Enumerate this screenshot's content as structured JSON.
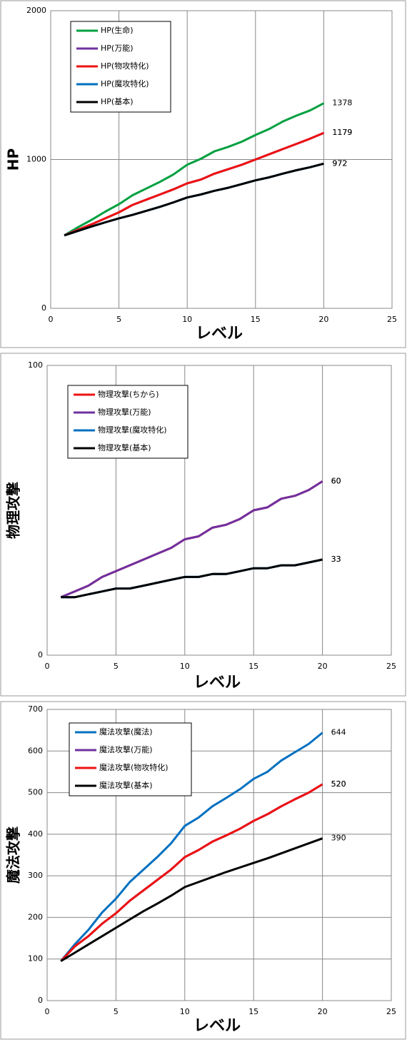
{
  "chart_data": [
    {
      "type": "line",
      "ylabel": "HP",
      "ylabel_color": "#00a040",
      "xlabel": "レベル",
      "x": [
        1,
        2,
        3,
        4,
        5,
        6,
        7,
        8,
        9,
        10,
        11,
        12,
        13,
        14,
        15,
        16,
        17,
        18,
        19,
        20
      ],
      "xlim": [
        0,
        25
      ],
      "xticks": [
        0,
        5,
        10,
        15,
        20,
        25
      ],
      "ylim": [
        0,
        2000
      ],
      "yticks": [
        0,
        1000,
        2000
      ],
      "grid": true,
      "series": [
        {
          "name": "HP(生命)",
          "color": "#00a040",
          "values": [
            490,
            545,
            595,
            650,
            700,
            760,
            805,
            850,
            900,
            965,
            1005,
            1055,
            1085,
            1120,
            1165,
            1205,
            1255,
            1295,
            1330,
            1378
          ]
        },
        {
          "name": "HP(万能)",
          "color": "#7030a0",
          "values": [
            490,
            528,
            565,
            605,
            645,
            695,
            730,
            765,
            800,
            840,
            865,
            905,
            935,
            965,
            1000,
            1035,
            1070,
            1105,
            1140,
            1179
          ]
        },
        {
          "name": "HP(物攻特化)",
          "color": "#ee1111",
          "values": [
            490,
            528,
            565,
            605,
            645,
            695,
            730,
            765,
            800,
            840,
            865,
            905,
            935,
            965,
            1000,
            1035,
            1070,
            1105,
            1140,
            1179
          ]
        },
        {
          "name": "HP(魔攻特化)",
          "color": "#0070c0",
          "values": [
            490,
            520,
            550,
            578,
            605,
            628,
            655,
            682,
            712,
            745,
            765,
            790,
            810,
            835,
            860,
            880,
            905,
            928,
            948,
            972
          ]
        },
        {
          "name": "HP(基本)",
          "color": "#000000",
          "values": [
            490,
            520,
            550,
            578,
            605,
            628,
            655,
            682,
            712,
            745,
            765,
            790,
            810,
            835,
            860,
            880,
            905,
            928,
            948,
            972
          ]
        }
      ]
    },
    {
      "type": "line",
      "ylabel": "物理攻撃",
      "ylabel_color": "#ee1111",
      "xlabel": "レベル",
      "x": [
        1,
        2,
        3,
        4,
        5,
        6,
        7,
        8,
        9,
        10,
        11,
        12,
        13,
        14,
        15,
        16,
        17,
        18,
        19,
        20
      ],
      "xlim": [
        0,
        25
      ],
      "xticks": [
        0,
        5,
        10,
        15,
        20,
        25
      ],
      "ylim": [
        0,
        100
      ],
      "yticks": [
        0,
        100
      ],
      "grid": true,
      "series": [
        {
          "name": "物理攻撃(ちから)",
          "color": "#ee1111",
          "values": [
            20,
            22,
            24,
            27,
            29,
            31,
            33,
            35,
            37,
            40,
            41,
            44,
            45,
            47,
            50,
            51,
            54,
            55,
            57,
            60
          ]
        },
        {
          "name": "物理攻撃(万能)",
          "color": "#7030a0",
          "values": [
            20,
            22,
            24,
            27,
            29,
            31,
            33,
            35,
            37,
            40,
            41,
            44,
            45,
            47,
            50,
            51,
            54,
            55,
            57,
            60
          ]
        },
        {
          "name": "物理攻撃(魔攻特化)",
          "color": "#0070c0",
          "values": [
            20,
            20,
            21,
            22,
            23,
            23,
            24,
            25,
            26,
            27,
            27,
            28,
            28,
            29,
            30,
            30,
            31,
            31,
            32,
            33
          ]
        },
        {
          "name": "物理攻撃(基本)",
          "color": "#000000",
          "values": [
            20,
            20,
            21,
            22,
            23,
            23,
            24,
            25,
            26,
            27,
            27,
            28,
            28,
            29,
            30,
            30,
            31,
            31,
            32,
            33
          ]
        }
      ]
    },
    {
      "type": "line",
      "ylabel": "魔法攻撃",
      "ylabel_color": "#0070c0",
      "xlabel": "レベル",
      "x": [
        1,
        2,
        3,
        4,
        5,
        6,
        7,
        8,
        9,
        10,
        11,
        12,
        13,
        14,
        15,
        16,
        17,
        18,
        19,
        20
      ],
      "xlim": [
        0,
        25
      ],
      "xticks": [
        0,
        5,
        10,
        15,
        20,
        25
      ],
      "ylim": [
        0,
        700
      ],
      "yticks": [
        0,
        100,
        200,
        300,
        400,
        500,
        600,
        700
      ],
      "grid": true,
      "series": [
        {
          "name": "魔法攻撃(魔法)",
          "color": "#0070c0",
          "values": [
            95,
            135,
            170,
            212,
            245,
            285,
            315,
            345,
            378,
            420,
            440,
            467,
            487,
            508,
            533,
            550,
            577,
            597,
            617,
            644
          ]
        },
        {
          "name": "魔法攻撃(万能)",
          "color": "#7030a0",
          "values": [
            95,
            130,
            155,
            185,
            210,
            240,
            265,
            290,
            315,
            345,
            362,
            382,
            397,
            413,
            432,
            448,
            467,
            484,
            500,
            520
          ]
        },
        {
          "name": "魔法攻撃(物攻特化)",
          "color": "#ee1111",
          "values": [
            95,
            130,
            155,
            185,
            210,
            240,
            265,
            290,
            315,
            345,
            362,
            382,
            397,
            413,
            432,
            448,
            467,
            484,
            500,
            520
          ]
        },
        {
          "name": "魔法攻撃(基本)",
          "color": "#000000",
          "values": [
            95,
            115,
            135,
            155,
            175,
            195,
            215,
            233,
            252,
            273,
            285,
            297,
            309,
            320,
            331,
            342,
            354,
            366,
            378,
            390
          ]
        }
      ]
    }
  ]
}
